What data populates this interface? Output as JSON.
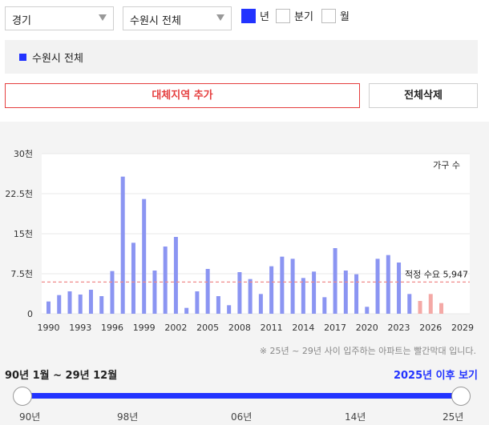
{
  "filters": {
    "province": "경기",
    "city": "수원시 전체",
    "period_options": [
      {
        "label": "년",
        "checked": true
      },
      {
        "label": "분기",
        "checked": false
      },
      {
        "label": "월",
        "checked": false
      }
    ]
  },
  "region_tag": "수원시 전체",
  "buttons": {
    "add_region": "대체지역 추가",
    "delete_all": "전체삭제"
  },
  "chart_data": {
    "type": "bar",
    "y_unit_label": "가구 수",
    "yticks": [
      "30천",
      "22.5천",
      "15천",
      "7.5천",
      "0"
    ],
    "ylim": [
      0,
      30000
    ],
    "x_tick_labels": [
      "1990",
      "1993",
      "1996",
      "1999",
      "2002",
      "2005",
      "2008",
      "2011",
      "2014",
      "2017",
      "2020",
      "2023",
      "2026",
      "2029"
    ],
    "years": [
      1990,
      1991,
      1992,
      1993,
      1994,
      1995,
      1996,
      1997,
      1998,
      1999,
      2000,
      2001,
      2002,
      2003,
      2004,
      2005,
      2006,
      2007,
      2008,
      2009,
      2010,
      2011,
      2012,
      2013,
      2014,
      2015,
      2016,
      2017,
      2018,
      2019,
      2020,
      2021,
      2022,
      2023,
      2024,
      2025,
      2026,
      2027
    ],
    "values": [
      2300,
      3500,
      4200,
      3600,
      4500,
      3300,
      8000,
      25700,
      13300,
      21500,
      8100,
      12600,
      14400,
      1100,
      4200,
      8400,
      3300,
      1600,
      7800,
      6500,
      3700,
      8900,
      10700,
      10300,
      6700,
      7900,
      3100,
      12300,
      8100,
      7400,
      1300,
      10300,
      11000,
      9600,
      3700,
      2400,
      3700,
      2000
    ],
    "forecast_from_year": 2025,
    "bar_color": "#8b95f2",
    "forecast_color": "#f4a9a6",
    "reference_line": {
      "label": "적정 수요 5,947",
      "value": 5947,
      "color": "#f08a8a"
    },
    "grid": true
  },
  "footnote": "※ 25년 ~ 29년 사이 입주하는 아파트는 빨간막대 입니다.",
  "range": {
    "label": "90년 1월 ~ 29년 12월",
    "link": "2025년 이후 보기",
    "scale_labels": [
      "90년",
      "98년",
      "06년",
      "14년",
      "25년"
    ]
  }
}
